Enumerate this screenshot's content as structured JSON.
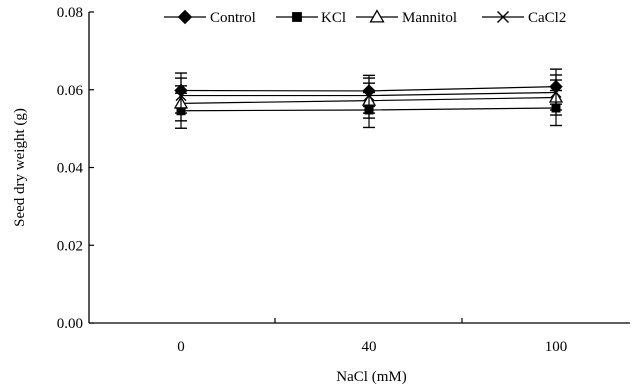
{
  "chart_data": {
    "type": "line",
    "title": "",
    "xlabel": "NaCl (mM)",
    "ylabel": "Seed dry weight (g)",
    "categories": [
      "0",
      "40",
      "100"
    ],
    "ylim": [
      0,
      0.08
    ],
    "y_ticks": [
      "0.00",
      "0.02",
      "0.04",
      "0.06",
      "0.08"
    ],
    "grid": false,
    "legend_position": "top",
    "series": [
      {
        "name": "Control",
        "marker": "diamond-filled",
        "values": [
          0.0598,
          0.0597,
          0.0608
        ],
        "error": [
          0.0045,
          0.004,
          0.0045
        ]
      },
      {
        "name": "KCl",
        "marker": "square-filled",
        "values": [
          0.0546,
          0.0548,
          0.0553
        ],
        "error": [
          0.0045,
          0.0045,
          0.0045
        ]
      },
      {
        "name": "Mannitol",
        "marker": "triangle-open",
        "values": [
          0.0565,
          0.0572,
          0.058
        ],
        "error": [
          0.0045,
          0.0045,
          0.0045
        ]
      },
      {
        "name": "CaCl2",
        "marker": "x",
        "values": [
          0.0585,
          0.0585,
          0.0593
        ],
        "error": [
          0.0045,
          0.0045,
          0.0045
        ]
      }
    ]
  }
}
